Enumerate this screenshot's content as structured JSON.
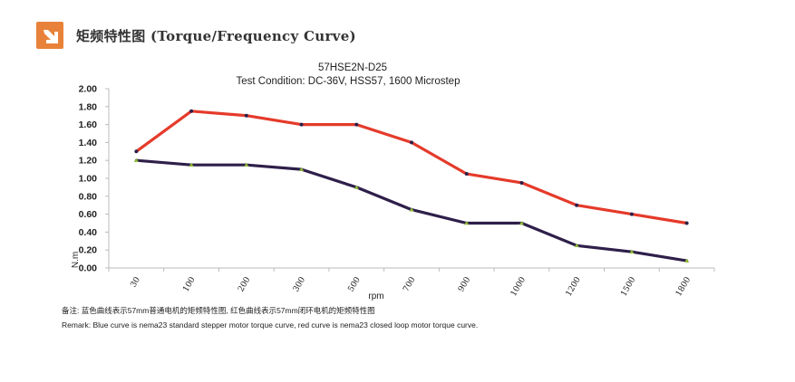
{
  "header": {
    "title": "矩频特性图 (Torque/Frequency Curve)",
    "logo_icon": "arrow-down-right-icon",
    "logo_color": "#e8823a"
  },
  "chart_data": {
    "type": "line",
    "title": "57HSE2N-D25",
    "subtitle": "Test Condition:   DC-36V,   HSS57,   1600 Microstep",
    "xlabel": "rpm",
    "ylabel": "N.m",
    "categories": [
      "30",
      "100",
      "200",
      "300",
      "500",
      "700",
      "900",
      "1000",
      "1200",
      "1500",
      "1800"
    ],
    "ylim": [
      0,
      2.0
    ],
    "yticks": [
      "0.00",
      "0.20",
      "0.40",
      "0.60",
      "0.80",
      "1.00",
      "1.20",
      "1.40",
      "1.60",
      "1.80",
      "2.00"
    ],
    "grid": false,
    "series": [
      {
        "color": "#e53a2a",
        "values": [
          1.3,
          1.75,
          1.7,
          1.6,
          1.6,
          1.4,
          1.05,
          0.95,
          0.7,
          0.6,
          0.5
        ]
      },
      {
        "color": "#2e1f4a",
        "values": [
          1.2,
          1.15,
          1.15,
          1.1,
          0.9,
          0.65,
          0.5,
          0.5,
          0.25,
          0.18,
          0.08
        ]
      }
    ],
    "marker_color": "#8fb83a"
  },
  "remarks": {
    "cn": "备注:  蓝色曲线表示57mm普通电机的矩频特性图, 红色曲线表示57mm闭环电机的矩频特性图",
    "en": "Remark: Blue curve is nema23 standard stepper motor torque curve, red curve is nema23 closed loop motor torque curve."
  }
}
